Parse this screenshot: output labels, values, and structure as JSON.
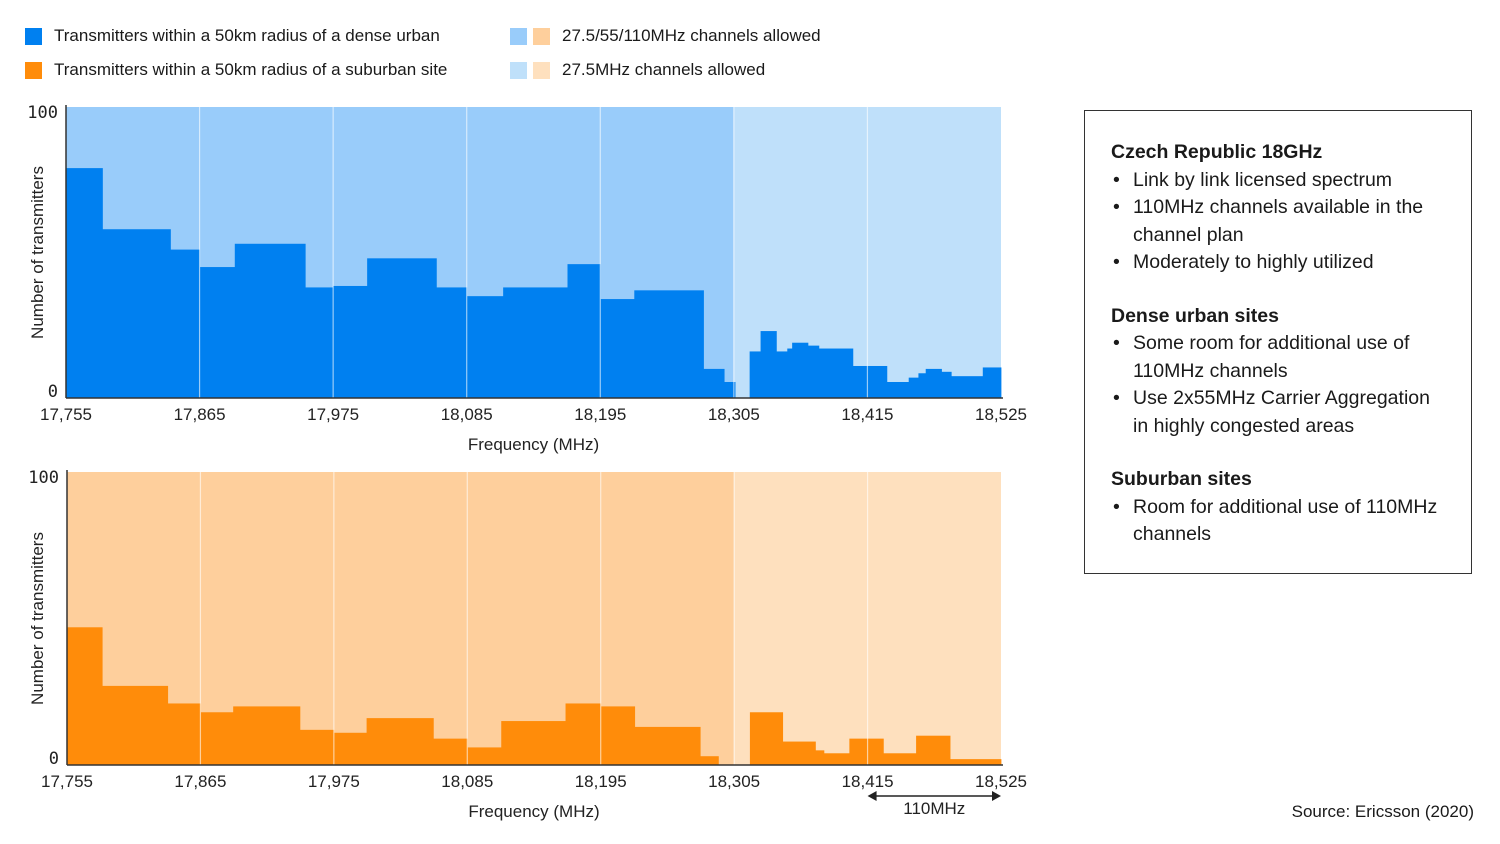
{
  "legend": {
    "dense_urban": "Transmitters within a 50km radius of a dense urban",
    "suburban": "Transmitters within a 50km radius of a suburban site",
    "band_wide": "27.5/55/110MHz channels allowed",
    "band_narrow": "27.5MHz channels allowed"
  },
  "colors": {
    "dense_urban": "#0080f0",
    "dense_band_wide": "#99ccfa",
    "dense_band_narrow": "#bfe0fa",
    "suburban": "#ff8c0a",
    "suburban_band_wide": "#fecf9c",
    "suburban_band_narrow": "#fee0be"
  },
  "chart_data": [
    {
      "type": "area",
      "ylabel": "Number of transmitters",
      "xlabel": "Frequency (MHz)",
      "xlim": [
        17755,
        18525
      ],
      "ylim": [
        0,
        100
      ],
      "yticks": [
        "0",
        "100"
      ],
      "xticks": [
        17755,
        17865,
        17975,
        18085,
        18195,
        18305,
        18415,
        18525
      ],
      "xtick_labels": [
        "17,755",
        "17,865",
        "17,975",
        "18,085",
        "18,195",
        "18,305",
        "18,415",
        "18,525"
      ],
      "series": [
        {
          "name": "Transmitters within a 50km radius of a dense urban",
          "edges": [
            17755,
            17785,
            17841,
            17865,
            17894,
            17952,
            17975,
            18003,
            18060,
            18085,
            18115,
            18168,
            18195,
            18223,
            18280,
            18297,
            18306,
            18318,
            18327,
            18340,
            18349,
            18353,
            18366,
            18375,
            18403,
            18431,
            18449,
            18457,
            18463,
            18476,
            18484,
            18510,
            18525
          ],
          "values": [
            79,
            58,
            51,
            45,
            53,
            38,
            38.5,
            48,
            38,
            35,
            38,
            46,
            34,
            37,
            10,
            5.5,
            0,
            16,
            23,
            16,
            17,
            19,
            18,
            17,
            11,
            5.5,
            7,
            8.5,
            10,
            9,
            7.5,
            10.5
          ]
        }
      ],
      "bands": [
        {
          "from": 17755,
          "to": 18305,
          "label": "27.5/55/110MHz channels allowed"
        },
        {
          "from": 18305,
          "to": 18525,
          "label": "27.5MHz channels allowed"
        }
      ]
    },
    {
      "type": "area",
      "ylabel": "Number of transmitters",
      "xlabel": "Frequency (MHz)",
      "xlim": [
        17755,
        18525
      ],
      "ylim": [
        0,
        100
      ],
      "yticks": [
        "0",
        "100"
      ],
      "xticks": [
        17755,
        17865,
        17975,
        18085,
        18195,
        18305,
        18415,
        18525
      ],
      "xtick_labels": [
        "17,755",
        "17,865",
        "17,975",
        "18,085",
        "18,195",
        "18,305",
        "18,415",
        "18,525"
      ],
      "series": [
        {
          "name": "Transmitters within a 50km radius of a suburban site",
          "edges": [
            17755,
            17784,
            17838,
            17865,
            17892,
            17947,
            17975,
            18002,
            18057,
            18085,
            18113,
            18166,
            18195,
            18223,
            18277,
            18292,
            18318,
            18345,
            18372,
            18379,
            18400,
            18428,
            18455,
            18483,
            18525
          ],
          "values": [
            47,
            27,
            21,
            18,
            20,
            12,
            11,
            16,
            9,
            6,
            15,
            21,
            20,
            13,
            3,
            0,
            18,
            8,
            5,
            4,
            9,
            4,
            10,
            2
          ]
        }
      ],
      "bands": [
        {
          "from": 17755,
          "to": 18305,
          "label": "27.5/55/110MHz channels allowed"
        },
        {
          "from": 18305,
          "to": 18525,
          "label": "27.5MHz channels allowed"
        }
      ],
      "annotation": {
        "label": "110MHz",
        "from": 18415,
        "to": 18525
      }
    }
  ],
  "info_box": {
    "sections": [
      {
        "title": "Czech Republic 18GHz",
        "items": [
          "Link by link licensed spectrum",
          "110MHz channels available in the channel plan",
          "Moderately to highly utilized"
        ]
      },
      {
        "title": "Dense urban sites",
        "items": [
          "Some room for additional use of 110MHz channels",
          "Use 2x55MHz Carrier Aggregation in highly congested areas"
        ]
      },
      {
        "title": "Suburban sites",
        "items": [
          "Room for additional use of 110MHz channels"
        ]
      }
    ]
  },
  "source": "Source: Ericsson (2020)"
}
